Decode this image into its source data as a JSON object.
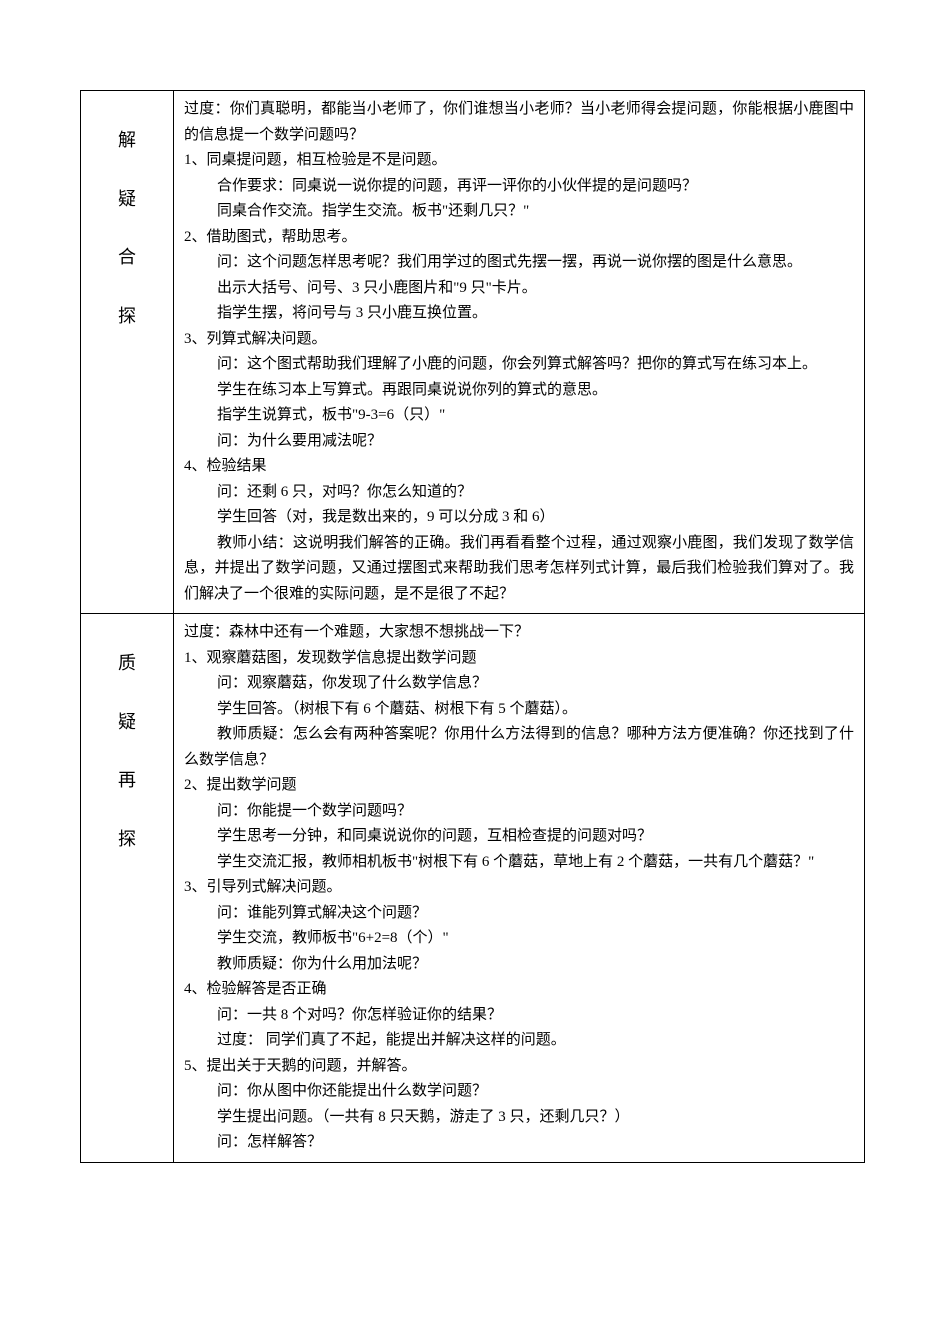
{
  "labels": {
    "section1": [
      "解",
      "疑",
      "合",
      "探"
    ],
    "section2": [
      "质",
      "疑",
      "再",
      "探"
    ]
  },
  "section1": {
    "p1": "过度：你们真聪明，都能当小老师了，你们谁想当小老师？当小老师得会提问题，你能根据小鹿图中的信息提一个数学问题吗？",
    "p2": "1、同桌提问题，相互检验是不是问题。",
    "p3": "合作要求：同桌说一说你提的问题，再评一评你的小伙伴提的是问题吗？",
    "p4": "同桌合作交流。指学生交流。板书\"还剩几只？\"",
    "p5": "2、借助图式，帮助思考。",
    "p6": "问：这个问题怎样思考呢？我们用学过的图式先摆一摆，再说一说你摆的图是什么意思。",
    "p7": "出示大括号、问号、3 只小鹿图片和\"9 只\"卡片。",
    "p8": "指学生摆，将问号与 3 只小鹿互换位置。",
    "p9": "3、列算式解决问题。",
    "p10": "问：这个图式帮助我们理解了小鹿的问题，你会列算式解答吗？把你的算式写在练习本上。",
    "p11": "学生在练习本上写算式。再跟同桌说说你列的算式的意思。",
    "p12": "指学生说算式，板书\"9-3=6（只）\"",
    "p13": "问：为什么要用减法呢？",
    "p14": "4、检验结果",
    "p15": "问：还剩 6 只，对吗？你怎么知道的？",
    "p16": "学生回答（对，我是数出来的，9 可以分成 3 和 6）",
    "p17": "教师小结：这说明我们解答的正确。我们再看看整个过程，通过观察小鹿图，我们发现了数学信息，并提出了数学问题，又通过摆图式来帮助我们思考怎样列式计算，最后我们检验我们算对了。我们解决了一个很难的实际问题，是不是很了不起？"
  },
  "section2": {
    "p1": "过度：森林中还有一个难题，大家想不想挑战一下？",
    "p2": "1、观察蘑菇图，发现数学信息提出数学问题",
    "p3": "问：观察蘑菇，你发现了什么数学信息？",
    "p4": "学生回答。（树根下有 6 个蘑菇、树根下有 5 个蘑菇）。",
    "p5": "教师质疑：怎么会有两种答案呢？你用什么方法得到的信息？哪种方法方便准确？你还找到了什么数学信息？",
    "p6": "2、提出数学问题",
    "p7": "问：你能提一个数学问题吗？",
    "p8": "学生思考一分钟，和同桌说说你的问题，互相检查提的问题对吗？",
    "p9": "学生交流汇报，教师相机板书\"树根下有 6 个蘑菇，草地上有 2 个蘑菇，一共有几个蘑菇？\"",
    "p10": "3、引导列式解决问题。",
    "p11": "问：谁能列算式解决这个问题？",
    "p12": "学生交流，教师板书\"6+2=8（个）\"",
    "p13": "教师质疑：你为什么用加法呢？",
    "p14": "4、检验解答是否正确",
    "p15": "问：一共 8 个对吗？你怎样验证你的结果？",
    "p16": "过度：  同学们真了不起，能提出并解决这样的问题。",
    "p17": "5、提出关于天鹅的问题，并解答。",
    "p18": "问：你从图中你还能提出什么数学问题？",
    "p19": "学生提出问题。（一共有 8 只天鹅，游走了 3 只，还剩几只？）",
    "p20": "问：怎样解答？"
  }
}
